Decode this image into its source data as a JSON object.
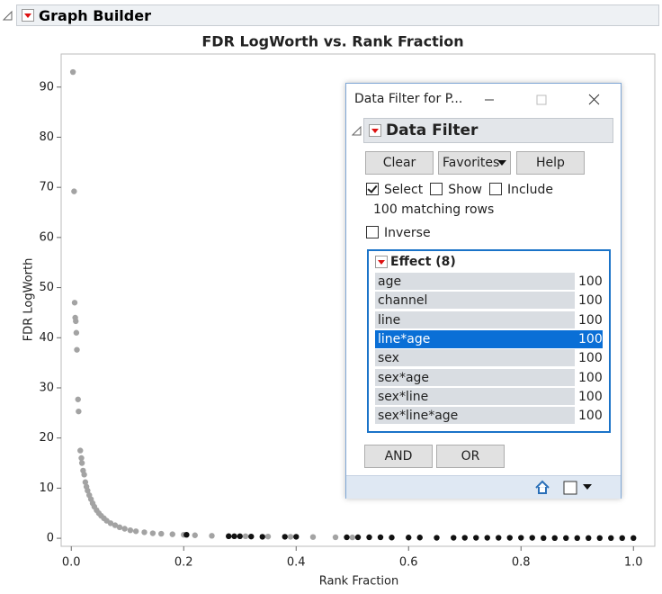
{
  "window": {
    "title": "Graph Builder"
  },
  "chart_data": {
    "type": "scatter",
    "title": "FDR LogWorth vs. Rank Fraction",
    "x_label": "Rank Fraction",
    "y_label": "FDR LogWorth",
    "xlim": [
      -0.018,
      1.038
    ],
    "ylim": [
      -1.6,
      96.6
    ],
    "xticks": [
      {
        "value": 0,
        "label": "0.0"
      },
      0.2,
      0.4,
      0.6,
      0.8,
      {
        "value": 1,
        "label": "1.0"
      }
    ],
    "yticks": [
      0,
      10,
      20,
      30,
      40,
      50,
      60,
      70,
      80,
      90
    ],
    "series": [
      {
        "color": "#a3a3a3",
        "x": [
          0.003,
          0.005,
          0.006,
          0.007,
          0.008,
          0.009,
          0.01,
          0.012,
          0.013,
          0.016,
          0.018,
          0.019,
          0.021,
          0.023,
          0.025,
          0.027,
          0.029,
          0.032,
          0.035,
          0.038,
          0.041,
          0.045,
          0.049,
          0.053,
          0.058,
          0.063,
          0.07,
          0.078,
          0.086,
          0.095,
          0.105,
          0.115,
          0.13,
          0.145,
          0.16,
          0.18,
          0.2,
          0.22,
          0.25,
          0.28,
          0.31,
          0.35,
          0.39,
          0.43,
          0.47,
          0.5
        ],
        "values": [
          93,
          69.2,
          47,
          44,
          43.3,
          41,
          37.6,
          27.7,
          25.3,
          17.5,
          16,
          15,
          13.5,
          12.7,
          11.2,
          10.3,
          9.5,
          8.6,
          7.8,
          7,
          6.3,
          5.6,
          5,
          4.5,
          4,
          3.5,
          3,
          2.6,
          2.2,
          1.9,
          1.6,
          1.4,
          1.2,
          1,
          0.9,
          0.8,
          0.7,
          0.6,
          0.5,
          0.45,
          0.4,
          0.35,
          0.3,
          0.25,
          0.2,
          0.18
        ]
      },
      {
        "color": "#111111",
        "x": [
          0.205,
          0.28,
          0.29,
          0.3,
          0.32,
          0.34,
          0.38,
          0.4,
          0.49,
          0.51,
          0.53,
          0.55,
          0.57,
          0.6,
          0.62,
          0.65,
          0.68,
          0.7,
          0.72,
          0.74,
          0.76,
          0.78,
          0.8,
          0.82,
          0.84,
          0.86,
          0.88,
          0.9,
          0.92,
          0.94,
          0.96,
          0.98,
          1.0
        ],
        "values": [
          0.7,
          0.4,
          0.4,
          0.4,
          0.35,
          0.3,
          0.3,
          0.3,
          0.2,
          0.2,
          0.2,
          0.2,
          0.15,
          0.15,
          0.15,
          0.1,
          0.1,
          0.1,
          0.1,
          0.1,
          0.1,
          0.1,
          0.1,
          0.1,
          0.05,
          0.05,
          0.05,
          0.05,
          0.05,
          0.05,
          0.05,
          0.05,
          0.05
        ]
      }
    ]
  },
  "filter_window": {
    "title": "Data Filter for P...",
    "section": "Data Filter",
    "buttons": [
      "Clear",
      "Favorites",
      "Help"
    ],
    "options": [
      {
        "label": "Select",
        "checked": true
      },
      {
        "label": "Show",
        "checked": false
      },
      {
        "label": "Include",
        "checked": false
      }
    ],
    "status": "100 matching rows",
    "inverse": {
      "label": "Inverse",
      "checked": false
    },
    "list": {
      "header": "Effect (8)",
      "selected": 3,
      "items": [
        {
          "name": "age",
          "count": "100"
        },
        {
          "name": "channel",
          "count": "100"
        },
        {
          "name": "line",
          "count": "100"
        },
        {
          "name": "line*age",
          "count": "100"
        },
        {
          "name": "sex",
          "count": "100"
        },
        {
          "name": "sex*age",
          "count": "100"
        },
        {
          "name": "sex*line",
          "count": "100"
        },
        {
          "name": "sex*line*age",
          "count": "100"
        }
      ]
    },
    "logic_buttons": [
      "AND",
      "OR"
    ]
  }
}
